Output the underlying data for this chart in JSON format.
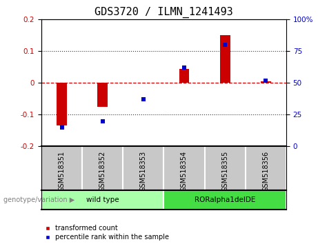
{
  "title": "GDS3720 / ILMN_1241493",
  "samples": [
    "GSM518351",
    "GSM518352",
    "GSM518353",
    "GSM518354",
    "GSM518355",
    "GSM518356"
  ],
  "red_values": [
    -0.135,
    -0.075,
    0.0,
    0.045,
    0.15,
    0.005
  ],
  "blue_percentiles": [
    15,
    20,
    37,
    62,
    80,
    52
  ],
  "ylim_left": [
    -0.2,
    0.2
  ],
  "ylim_right": [
    0,
    100
  ],
  "yticks_left": [
    -0.2,
    -0.1,
    0.0,
    0.1,
    0.2
  ],
  "yticks_right": [
    0,
    25,
    50,
    75,
    100
  ],
  "bar_color": "#CC0000",
  "point_color": "#0000CC",
  "zero_line_color": "#CC0000",
  "dot_line_color": "#333333",
  "bg_plot": "#FFFFFF",
  "bg_xtick": "#C8C8C8",
  "bg_group_wt": "#AAFFAA",
  "bg_group_ror": "#44DD44",
  "group_border": "#888888",
  "legend_red_label": "transformed count",
  "legend_blue_label": "percentile rank within the sample",
  "genotype_label": "genotype/variation",
  "title_fontsize": 11,
  "tick_fontsize": 7.5,
  "label_fontsize": 7,
  "bar_width": 0.25
}
